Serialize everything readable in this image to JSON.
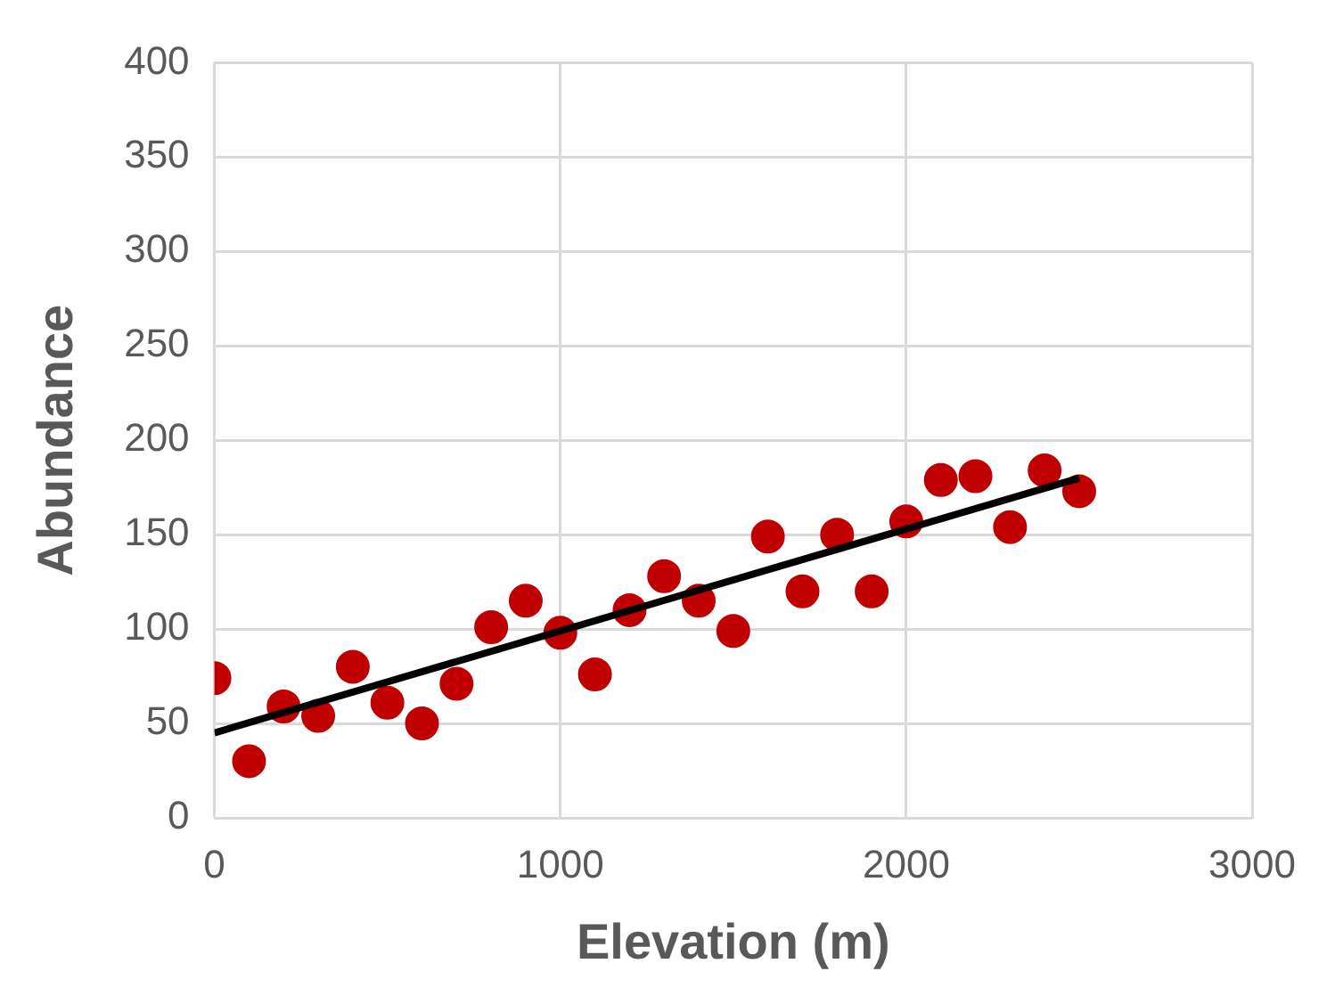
{
  "chart_data": {
    "type": "scatter",
    "xlabel": "Elevation (m)",
    "ylabel": "Abundance",
    "xlim": [
      0,
      3000
    ],
    "xticks": [
      0,
      1000,
      2000,
      3000
    ],
    "ylim": [
      0,
      400
    ],
    "yticks": [
      0,
      50,
      100,
      150,
      200,
      250,
      300,
      350,
      400
    ],
    "grid": true,
    "legend": false,
    "marker": "circle",
    "series": [
      {
        "color": "#c00000",
        "x": [
          0,
          100,
          200,
          300,
          400,
          500,
          600,
          700,
          800,
          900,
          1000,
          1100,
          1200,
          1300,
          1400,
          1500,
          1600,
          1700,
          1800,
          1900,
          2000,
          2100,
          2200,
          2300,
          2400,
          2500
        ],
        "values": [
          74,
          30,
          59,
          54,
          80,
          61,
          50,
          71,
          101,
          115,
          98,
          76,
          110,
          128,
          115,
          99,
          149,
          120,
          150,
          120,
          157,
          179,
          181,
          154,
          184,
          173
        ]
      },
      {
        "type": "line",
        "color": "#000000",
        "line_style": "solid",
        "marker": "none",
        "x": [
          0,
          2500
        ],
        "values": [
          45,
          180
        ]
      }
    ]
  }
}
